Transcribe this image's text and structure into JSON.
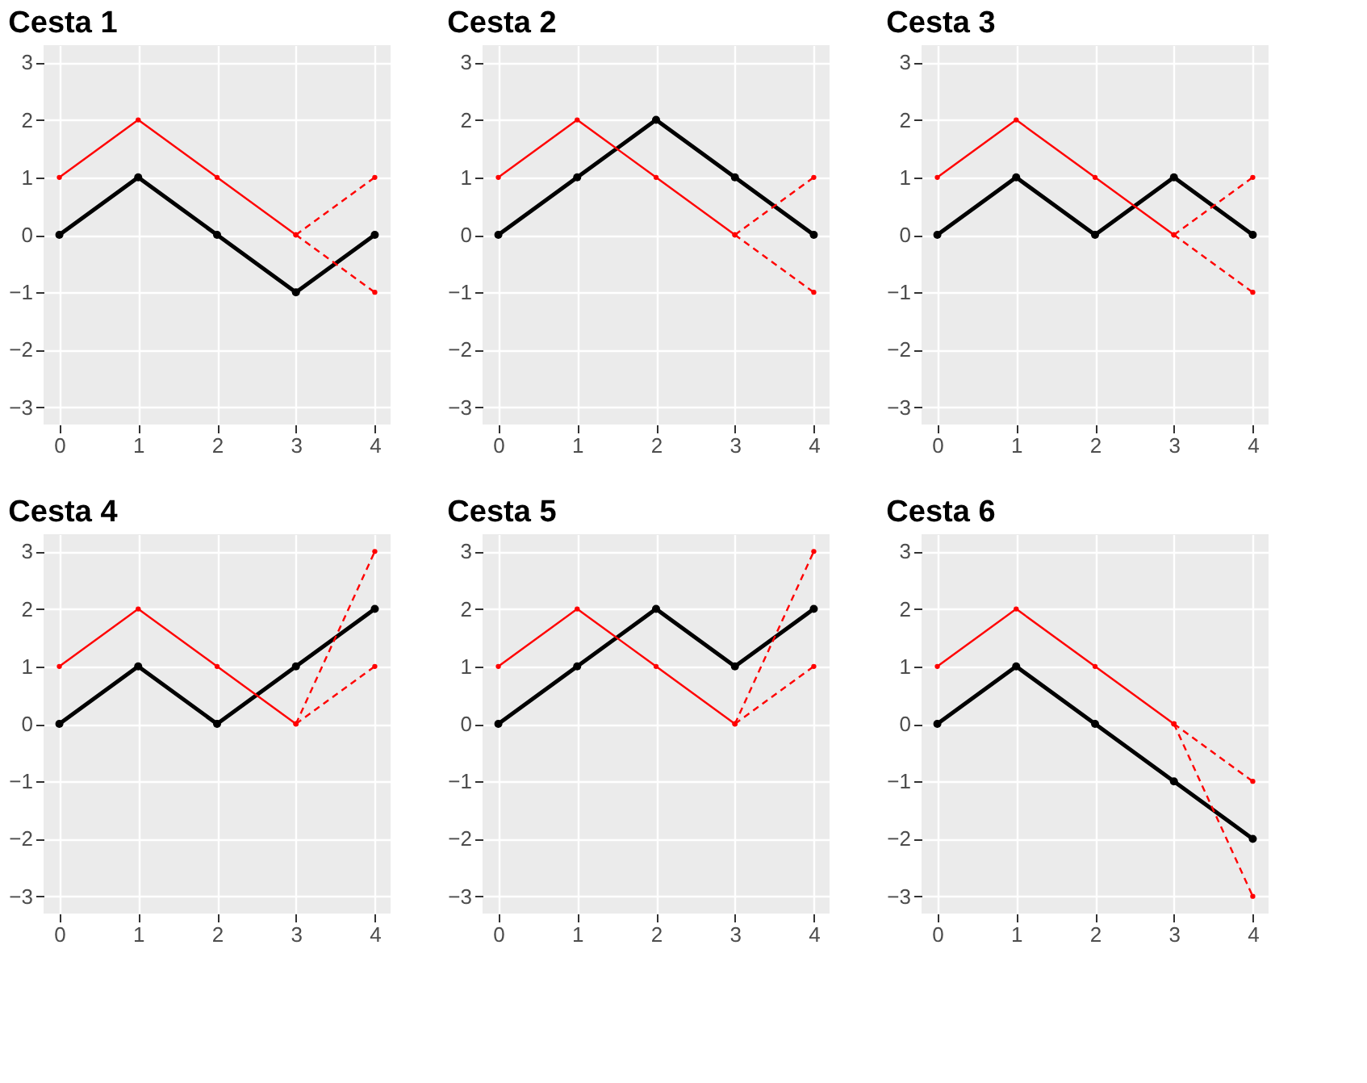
{
  "chart_data": [
    {
      "type": "line",
      "title": "Cesta 1",
      "xlim": [
        -0.2,
        4.2
      ],
      "ylim": [
        -3.3,
        3.3
      ],
      "xticks": [
        0,
        1,
        2,
        3,
        4
      ],
      "yticks": [
        -3,
        -2,
        -1,
        0,
        1,
        2,
        3
      ],
      "grid": true,
      "marker": "circle",
      "series": [
        {
          "color": "#000000",
          "x": [
            0,
            1,
            2,
            3,
            4
          ],
          "values": [
            0,
            1,
            0,
            -1,
            0
          ],
          "line_style": "solid"
        },
        {
          "color": "#ff0000",
          "x": [
            0,
            1,
            2,
            3
          ],
          "values": [
            1,
            2,
            1,
            0
          ],
          "line_style": "solid"
        },
        {
          "color": "#ff0000",
          "x": [
            3,
            4
          ],
          "values": [
            0,
            1
          ],
          "line_style": "dashed"
        },
        {
          "color": "#ff0000",
          "x": [
            3,
            4
          ],
          "values": [
            0,
            -1
          ],
          "line_style": "dashed"
        }
      ]
    },
    {
      "type": "line",
      "title": "Cesta 2",
      "xlim": [
        -0.2,
        4.2
      ],
      "ylim": [
        -3.3,
        3.3
      ],
      "xticks": [
        0,
        1,
        2,
        3,
        4
      ],
      "yticks": [
        -3,
        -2,
        -1,
        0,
        1,
        2,
        3
      ],
      "grid": true,
      "marker": "circle",
      "series": [
        {
          "color": "#000000",
          "x": [
            0,
            1,
            2,
            3,
            4
          ],
          "values": [
            0,
            1,
            2,
            1,
            0
          ],
          "line_style": "solid"
        },
        {
          "color": "#ff0000",
          "x": [
            0,
            1,
            2,
            3
          ],
          "values": [
            1,
            2,
            1,
            0
          ],
          "line_style": "solid"
        },
        {
          "color": "#ff0000",
          "x": [
            3,
            4
          ],
          "values": [
            0,
            1
          ],
          "line_style": "dashed"
        },
        {
          "color": "#ff0000",
          "x": [
            3,
            4
          ],
          "values": [
            0,
            -1
          ],
          "line_style": "dashed"
        }
      ]
    },
    {
      "type": "line",
      "title": "Cesta 3",
      "xlim": [
        -0.2,
        4.2
      ],
      "ylim": [
        -3.3,
        3.3
      ],
      "xticks": [
        0,
        1,
        2,
        3,
        4
      ],
      "yticks": [
        -3,
        -2,
        -1,
        0,
        1,
        2,
        3
      ],
      "grid": true,
      "marker": "circle",
      "series": [
        {
          "color": "#000000",
          "x": [
            0,
            1,
            2,
            3,
            4
          ],
          "values": [
            0,
            1,
            0,
            1,
            0
          ],
          "line_style": "solid"
        },
        {
          "color": "#ff0000",
          "x": [
            0,
            1,
            2,
            3
          ],
          "values": [
            1,
            2,
            1,
            0
          ],
          "line_style": "solid"
        },
        {
          "color": "#ff0000",
          "x": [
            3,
            4
          ],
          "values": [
            0,
            1
          ],
          "line_style": "dashed"
        },
        {
          "color": "#ff0000",
          "x": [
            3,
            4
          ],
          "values": [
            0,
            -1
          ],
          "line_style": "dashed"
        }
      ]
    },
    {
      "type": "line",
      "title": "Cesta 4",
      "xlim": [
        -0.2,
        4.2
      ],
      "ylim": [
        -3.3,
        3.3
      ],
      "xticks": [
        0,
        1,
        2,
        3,
        4
      ],
      "yticks": [
        -3,
        -2,
        -1,
        0,
        1,
        2,
        3
      ],
      "grid": true,
      "marker": "circle",
      "series": [
        {
          "color": "#000000",
          "x": [
            0,
            1,
            2,
            3,
            4
          ],
          "values": [
            0,
            1,
            0,
            1,
            2
          ],
          "line_style": "solid"
        },
        {
          "color": "#ff0000",
          "x": [
            0,
            1,
            2,
            3
          ],
          "values": [
            1,
            2,
            1,
            0
          ],
          "line_style": "solid"
        },
        {
          "color": "#ff0000",
          "x": [
            3,
            4
          ],
          "values": [
            0,
            3
          ],
          "line_style": "dashed"
        },
        {
          "color": "#ff0000",
          "x": [
            3,
            4
          ],
          "values": [
            0,
            1
          ],
          "line_style": "dashed"
        }
      ]
    },
    {
      "type": "line",
      "title": "Cesta 5",
      "xlim": [
        -0.2,
        4.2
      ],
      "ylim": [
        -3.3,
        3.3
      ],
      "xticks": [
        0,
        1,
        2,
        3,
        4
      ],
      "yticks": [
        -3,
        -2,
        -1,
        0,
        1,
        2,
        3
      ],
      "grid": true,
      "marker": "circle",
      "series": [
        {
          "color": "#000000",
          "x": [
            0,
            1,
            2,
            3,
            4
          ],
          "values": [
            0,
            1,
            2,
            1,
            2
          ],
          "line_style": "solid"
        },
        {
          "color": "#ff0000",
          "x": [
            0,
            1,
            2,
            3
          ],
          "values": [
            1,
            2,
            1,
            0
          ],
          "line_style": "solid"
        },
        {
          "color": "#ff0000",
          "x": [
            3,
            4
          ],
          "values": [
            0,
            3
          ],
          "line_style": "dashed"
        },
        {
          "color": "#ff0000",
          "x": [
            3,
            4
          ],
          "values": [
            0,
            1
          ],
          "line_style": "dashed"
        }
      ]
    },
    {
      "type": "line",
      "title": "Cesta 6",
      "xlim": [
        -0.2,
        4.2
      ],
      "ylim": [
        -3.3,
        3.3
      ],
      "xticks": [
        0,
        1,
        2,
        3,
        4
      ],
      "yticks": [
        -3,
        -2,
        -1,
        0,
        1,
        2,
        3
      ],
      "grid": true,
      "marker": "circle",
      "series": [
        {
          "color": "#000000",
          "x": [
            0,
            1,
            2,
            3,
            4
          ],
          "values": [
            0,
            1,
            0,
            -1,
            -2
          ],
          "line_style": "solid"
        },
        {
          "color": "#ff0000",
          "x": [
            0,
            1,
            2,
            3
          ],
          "values": [
            1,
            2,
            1,
            0
          ],
          "line_style": "solid"
        },
        {
          "color": "#ff0000",
          "x": [
            3,
            4
          ],
          "values": [
            0,
            -1
          ],
          "line_style": "dashed"
        },
        {
          "color": "#ff0000",
          "x": [
            3,
            4
          ],
          "values": [
            0,
            -3
          ],
          "line_style": "dashed"
        }
      ]
    }
  ]
}
